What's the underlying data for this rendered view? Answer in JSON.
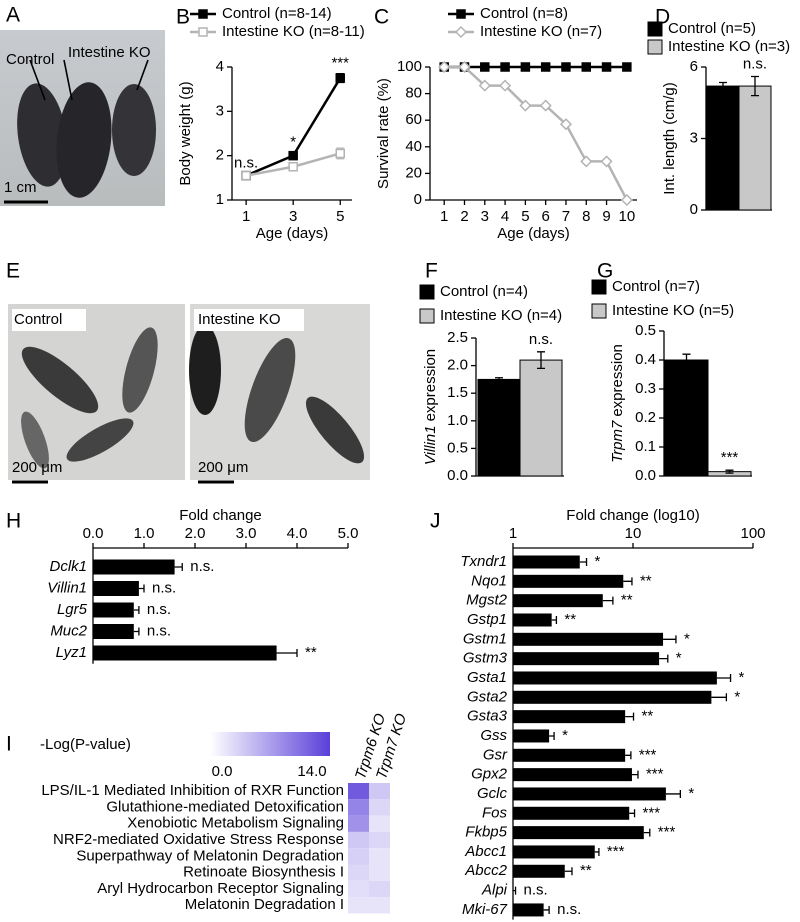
{
  "photos": [
    {
      "panel": "A",
      "labels": [
        "Control",
        "Intestine KO"
      ],
      "scale_bar": "1 cm"
    },
    {
      "panel": "E",
      "labels": [
        "Control",
        "Intestine KO"
      ],
      "scale_bars": [
        "200 μm",
        "200 μm"
      ]
    }
  ],
  "chart_data": [
    {
      "panel": "B",
      "type": "line",
      "x": [
        1,
        3,
        5
      ],
      "xlim": [
        0.4,
        5.5
      ],
      "xticks": [
        1,
        3,
        5
      ],
      "ylim": [
        1,
        4
      ],
      "yticks": [
        1,
        2,
        3,
        4
      ],
      "xlabel": "Age (days)",
      "ylabel": "Body weight (g)",
      "series": [
        {
          "name": "Control (n=8-14)",
          "color": "#000000",
          "marker": "square",
          "marker_filled": true,
          "values": [
            1.55,
            2.0,
            3.75
          ],
          "errors": [
            0.05,
            0.07,
            0.1
          ]
        },
        {
          "name": "Intestine KO (n=8-11)",
          "color": "#b4b4b4",
          "marker": "square",
          "marker_filled": false,
          "values": [
            1.55,
            1.75,
            2.05
          ],
          "errors": [
            0.05,
            0.05,
            0.12
          ]
        }
      ],
      "annotations": [
        "n.s.",
        "*",
        "***"
      ]
    },
    {
      "panel": "C",
      "type": "line",
      "x": [
        1,
        2,
        3,
        4,
        5,
        6,
        7,
        8,
        9,
        10
      ],
      "xlim": [
        0.3,
        10.5
      ],
      "xticks": [
        1,
        2,
        3,
        4,
        5,
        6,
        7,
        8,
        9,
        10
      ],
      "ylim": [
        0,
        100
      ],
      "yticks": [
        0,
        20,
        40,
        60,
        80,
        100
      ],
      "xlabel": "Age (days)",
      "ylabel": "Survival rate (%)",
      "series": [
        {
          "name": "Control (n=8)",
          "color": "#000000",
          "marker": "square",
          "marker_filled": true,
          "values": [
            100,
            100,
            100,
            100,
            100,
            100,
            100,
            100,
            100,
            100
          ]
        },
        {
          "name": "Intestine KO (n=7)",
          "color": "#b4b4b4",
          "marker": "diamond",
          "marker_filled": false,
          "values": [
            100,
            100,
            86,
            86,
            71,
            71,
            57,
            29,
            29,
            0
          ]
        }
      ]
    },
    {
      "panel": "D",
      "type": "bar",
      "ylim": [
        0,
        6
      ],
      "yticks": [
        0,
        3,
        6
      ],
      "ylabel": "Int. length (cm/g)",
      "series": [
        {
          "name": "Control (n=5)",
          "color": "#000000",
          "values": [
            5.2
          ],
          "errors": [
            0.15
          ]
        },
        {
          "name": "Intestine KO (n=3)",
          "color": "#c8c8c8",
          "values": [
            5.2
          ],
          "errors": [
            0.4
          ]
        }
      ],
      "annotation": "n.s."
    },
    {
      "panel": "F",
      "type": "bar",
      "ylim": [
        0,
        2.5
      ],
      "yticks": [
        {
          "value": 0,
          "label": "0.0"
        },
        0.5,
        {
          "value": 1,
          "label": "1.0"
        },
        1.5,
        {
          "value": 2,
          "label": "2.0"
        },
        2.5
      ],
      "ylabel_italic": "Villin1",
      "ylabel": "expression",
      "series": [
        {
          "name": "Control (n=4)",
          "color": "#000000",
          "values": [
            1.75
          ],
          "errors": [
            0.03
          ]
        },
        {
          "name": "Intestine KO (n=4)",
          "color": "#c8c8c8",
          "values": [
            2.1
          ],
          "errors": [
            0.15
          ]
        }
      ],
      "annotation": "n.s."
    },
    {
      "panel": "G",
      "type": "bar",
      "ylim": [
        0,
        0.5
      ],
      "yticks": [
        {
          "value": 0,
          "label": "0.0"
        },
        0.1,
        0.2,
        0.3,
        0.4,
        0.5
      ],
      "ylabel_italic": "Trpm7",
      "ylabel": "expression",
      "series": [
        {
          "name": "Control (n=7)",
          "color": "#000000",
          "values": [
            0.4
          ],
          "errors": [
            0.02
          ]
        },
        {
          "name": "Intestine KO (n=5)",
          "color": "#c8c8c8",
          "values": [
            0.015
          ],
          "errors": [
            0.005
          ]
        }
      ],
      "annotation": "***"
    },
    {
      "panel": "H",
      "type": "hbar",
      "xlabel": "Fold change",
      "xlim": [
        0,
        5
      ],
      "xticks": [
        {
          "value": 0,
          "label": "0.0"
        },
        {
          "value": 1,
          "label": "1.0"
        },
        {
          "value": 2,
          "label": "2.0"
        },
        {
          "value": 3,
          "label": "3.0"
        },
        {
          "value": 4,
          "label": "4.0"
        },
        {
          "value": 5,
          "label": "5.0"
        }
      ],
      "color": "#000000",
      "categories": [
        "Dclk1",
        "Villin1",
        "Lgr5",
        "Muc2",
        "Lyz1"
      ],
      "values": [
        1.6,
        0.9,
        0.8,
        0.8,
        3.6
      ],
      "errors": [
        0.15,
        0.1,
        0.1,
        0.1,
        0.4
      ],
      "annotations": [
        "n.s.",
        "n.s.",
        "n.s.",
        "n.s.",
        "**"
      ]
    },
    {
      "panel": "I",
      "type": "heatmap",
      "colorbar_label": "-Log(P-value)",
      "clim": [
        0,
        14
      ],
      "cticks": [
        {
          "value": 0,
          "label": "0.0"
        },
        {
          "value": 14,
          "label": "14.0"
        }
      ],
      "colors": [
        "#ffffff",
        "#5a3fd9"
      ],
      "columns": [
        "Trpm6 KO",
        "Trpm7 KO"
      ],
      "rows": [
        "LPS/IL-1 Mediated Inhibition of RXR Function",
        "Glutathione-mediated Detoxification",
        "Xenobiotic Metabolism Signaling",
        "NRF2-mediated Oxidative Stress Response",
        "Superpathway of Melatonin Degradation",
        "Retinoate Biosynthesis I",
        "Aryl Hydrocarbon Receptor Signaling",
        "Melatonin Degradation I"
      ],
      "values": [
        [
          12,
          4
        ],
        [
          9,
          3
        ],
        [
          8,
          2
        ],
        [
          4,
          3
        ],
        [
          3.5,
          2
        ],
        [
          3,
          2
        ],
        [
          2.5,
          3
        ],
        [
          2,
          2
        ]
      ]
    },
    {
      "panel": "J",
      "type": "hbar",
      "xlabel": "Fold change (log10)",
      "xscale": "log",
      "xlim": [
        1,
        100
      ],
      "xticks": [
        1,
        10,
        100
      ],
      "color": "#000000",
      "categories": [
        "Txndr1",
        "Nqo1",
        "Mgst2",
        "Gstp1",
        "Gstm1",
        "Gstm3",
        "Gsta1",
        "Gsta2",
        "Gsta3",
        "Gss",
        "Gsr",
        "Gpx2",
        "Gclc",
        "Fos",
        "Fkbp5",
        "Abcc1",
        "Abcc2",
        "Alpi",
        "Mki-67"
      ],
      "values": [
        3.6,
        8.3,
        5.6,
        2.1,
        17.8,
        16.5,
        50,
        45,
        8.6,
        2.0,
        8.6,
        9.8,
        18.8,
        9.3,
        12.3,
        4.8,
        2.7,
        1.0,
        1.8
      ],
      "errors": [
        0.5,
        1.5,
        1.2,
        0.2,
        5,
        3,
        15,
        15,
        1.5,
        0.2,
        1,
        1.2,
        6,
        1,
        1.5,
        0.4,
        0.4,
        0.05,
        0.2
      ],
      "annotations": [
        "*",
        "**",
        "**",
        "**",
        "*",
        "*",
        "*",
        "*",
        "**",
        "*",
        "***",
        "***",
        "*",
        "***",
        "***",
        "***",
        "**",
        "n.s.",
        "n.s."
      ]
    }
  ]
}
